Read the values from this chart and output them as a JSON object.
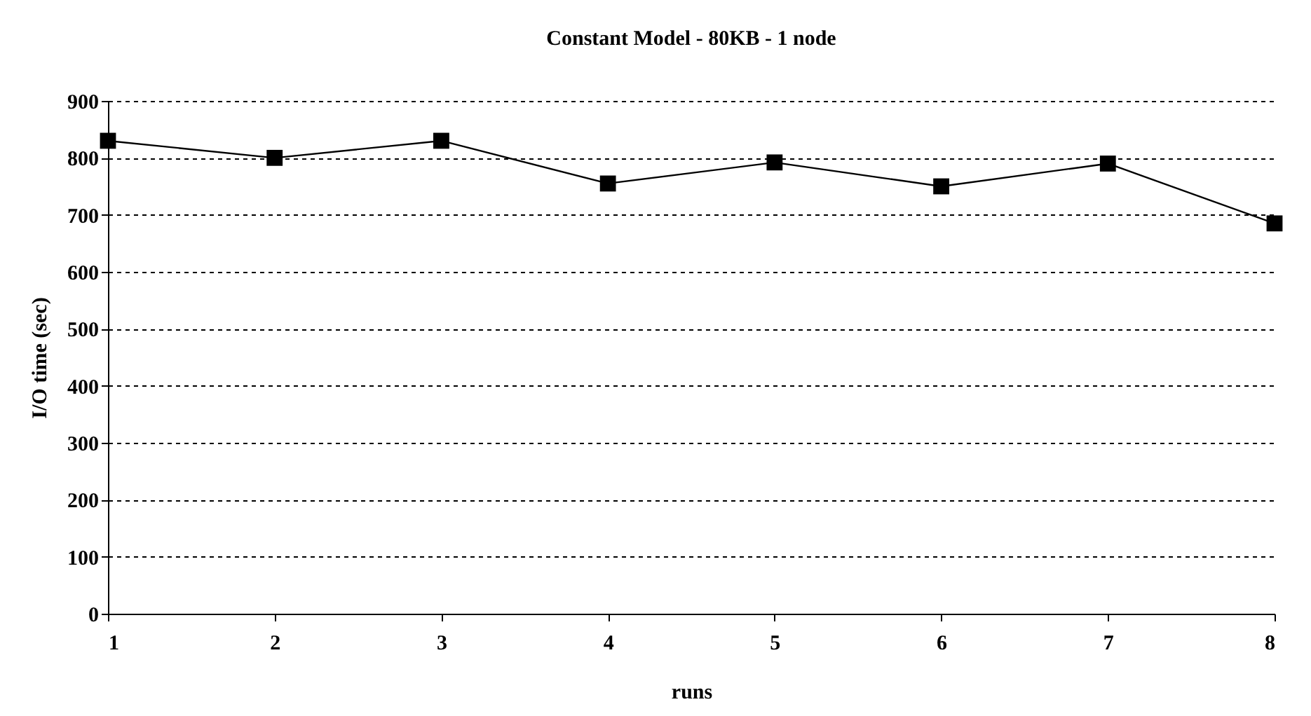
{
  "chart_data": {
    "type": "line",
    "title": "Constant Model - 80KB - 1 node",
    "xlabel": "runs",
    "ylabel": "I/O time (sec)",
    "x": [
      1,
      2,
      3,
      4,
      5,
      6,
      7,
      8
    ],
    "series": [
      {
        "color": "#000000",
        "values": [
          830,
          800,
          830,
          755,
          792,
          750,
          790,
          685
        ]
      }
    ],
    "xlim": [
      1,
      8
    ],
    "xticks": [
      1,
      2,
      3,
      4,
      5,
      6,
      7,
      8
    ],
    "ylim": [
      0,
      900
    ],
    "yticks": [
      0,
      100,
      200,
      300,
      400,
      500,
      600,
      700,
      800,
      900
    ],
    "grid": "y",
    "marker": "square",
    "line_style": "solid"
  }
}
